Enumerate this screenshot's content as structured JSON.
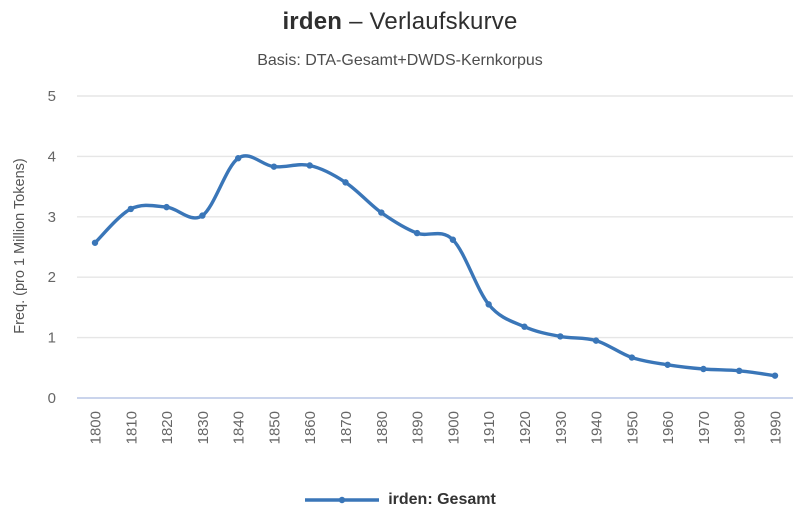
{
  "header": {
    "title_term": "irden",
    "title_rest": "– Verlaufskurve",
    "subtitle": "Basis: DTA-Gesamt+DWDS-Kernkorpus"
  },
  "chart_data": {
    "type": "line",
    "title": "irden – Verlaufskurve",
    "subtitle": "Basis: DTA-Gesamt+DWDS-Kernkorpus",
    "categories": [
      "1800",
      "1810",
      "1820",
      "1830",
      "1840",
      "1850",
      "1860",
      "1870",
      "1880",
      "1890",
      "1900",
      "1910",
      "1920",
      "1930",
      "1940",
      "1950",
      "1960",
      "1970",
      "1980",
      "1990"
    ],
    "series": [
      {
        "name": "irden: Gesamt",
        "color": "#3a76b8",
        "values": [
          2.57,
          3.13,
          3.16,
          3.02,
          3.97,
          3.83,
          3.85,
          3.57,
          3.07,
          2.73,
          2.62,
          1.55,
          1.18,
          1.02,
          0.95,
          0.67,
          0.55,
          0.48,
          0.45,
          0.37
        ]
      }
    ],
    "xlabel": "",
    "ylabel": "Freq. (pro 1 Million Tokens)",
    "ylim": [
      0,
      5
    ],
    "yticks": [
      0,
      1,
      2,
      3,
      4,
      5
    ],
    "grid": true,
    "curve": "smooth",
    "legend_position": "bottom"
  },
  "legend": {
    "label": "irden: Gesamt"
  },
  "colors": {
    "line": "#3a76b8",
    "grid": "#e6e6e6",
    "zero_line": "#b8c6e6",
    "title": "#2f2f2f",
    "subtitle": "#4d4d4d",
    "tick_label": "#666666",
    "axis_title": "#555555",
    "legend_text": "#333333"
  }
}
